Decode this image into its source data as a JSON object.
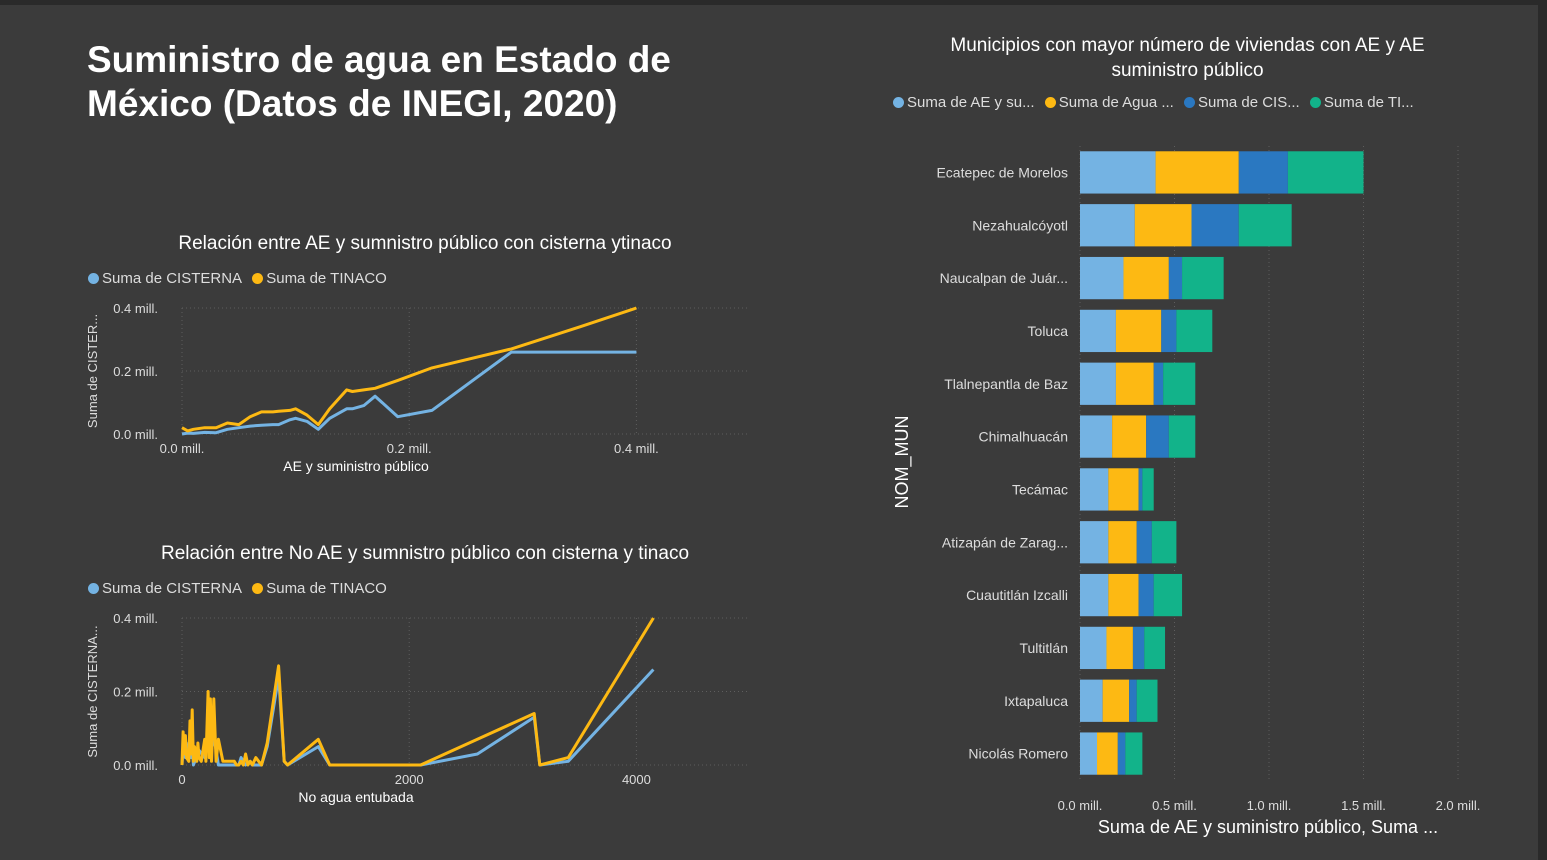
{
  "page": {
    "title": "Suministro de agua en Estado de México (Datos de INEGI, 2020)"
  },
  "colors": {
    "cisterna_line": "#74b3e3",
    "tinaco_line": "#fdb913",
    "ae": "#74b3e3",
    "agua": "#fdb913",
    "cis": "#2a78c1",
    "ti": "#12b38a"
  },
  "chart_data": [
    {
      "id": "ae",
      "type": "line",
      "title": "Relación entre AE y sumnistro público con cisterna ytinaco",
      "xlabel": "AE y suministro público",
      "ylabel": "Suma de CISTER...",
      "xlim": [
        0,
        0.5
      ],
      "ylim": [
        0,
        0.4
      ],
      "xticks": [
        {
          "v": 0,
          "label": "0.0 mill."
        },
        {
          "v": 0.2,
          "label": "0.2 mill."
        },
        {
          "v": 0.4,
          "label": "0.4 mill."
        }
      ],
      "yticks": [
        {
          "v": 0,
          "label": "0.0 mill."
        },
        {
          "v": 0.2,
          "label": "0.2 mill."
        },
        {
          "v": 0.4,
          "label": "0.4 mill."
        }
      ],
      "grid": true,
      "legend_position": "top-left",
      "series": [
        {
          "name": "Suma de CISTERNA",
          "color": "#74b3e3",
          "x": [
            0.0,
            0.005,
            0.01,
            0.02,
            0.03,
            0.04,
            0.05,
            0.06,
            0.07,
            0.08,
            0.085,
            0.095,
            0.1,
            0.11,
            0.12,
            0.13,
            0.145,
            0.15,
            0.16,
            0.17,
            0.19,
            0.22,
            0.29,
            0.35,
            0.4
          ],
          "y": [
            0.0,
            0.003,
            0.002,
            0.005,
            0.004,
            0.015,
            0.02,
            0.025,
            0.028,
            0.03,
            0.03,
            0.045,
            0.05,
            0.04,
            0.015,
            0.05,
            0.08,
            0.08,
            0.09,
            0.12,
            0.055,
            0.075,
            0.26,
            0.26,
            0.26
          ]
        },
        {
          "name": "Suma de TINACO",
          "color": "#fdb913",
          "x": [
            0.0,
            0.005,
            0.01,
            0.02,
            0.03,
            0.04,
            0.05,
            0.06,
            0.07,
            0.08,
            0.085,
            0.095,
            0.1,
            0.11,
            0.12,
            0.13,
            0.145,
            0.15,
            0.16,
            0.17,
            0.19,
            0.22,
            0.29,
            0.35,
            0.4
          ],
          "y": [
            0.02,
            0.01,
            0.015,
            0.02,
            0.02,
            0.035,
            0.03,
            0.055,
            0.07,
            0.07,
            0.072,
            0.075,
            0.08,
            0.06,
            0.03,
            0.08,
            0.14,
            0.135,
            0.14,
            0.145,
            0.17,
            0.21,
            0.27,
            0.34,
            0.4
          ]
        }
      ]
    },
    {
      "id": "noae",
      "type": "line",
      "title": "Relación entre No AE y sumnistro público con cisterna y tinaco",
      "xlabel": "No agua entubada",
      "ylabel": "Suma de CISTERNA...",
      "xlim": [
        0,
        5000
      ],
      "ylim": [
        0,
        0.4
      ],
      "xticks": [
        {
          "v": 0,
          "label": "0"
        },
        {
          "v": 2000,
          "label": "2000"
        },
        {
          "v": 4000,
          "label": "4000"
        }
      ],
      "yticks": [
        {
          "v": 0,
          "label": "0.0 mill."
        },
        {
          "v": 0.2,
          "label": "0.2 mill."
        },
        {
          "v": 0.4,
          "label": "0.4 mill."
        }
      ],
      "grid": true,
      "legend_position": "top-left",
      "series": [
        {
          "name": "Suma de CISTERNA",
          "color": "#74b3e3",
          "x": [
            0,
            10,
            30,
            60,
            80,
            90,
            100,
            150,
            200,
            230,
            250,
            280,
            320,
            380,
            450,
            500,
            520,
            560,
            600,
            620,
            700,
            750,
            850,
            900,
            930,
            1200,
            1300,
            1600,
            2100,
            2600,
            3100,
            3150,
            3400,
            4150
          ],
          "y": [
            0,
            0.05,
            0.02,
            0.06,
            0.02,
            0.08,
            0.0,
            0.04,
            0.02,
            0.1,
            0.02,
            0.08,
            0.0,
            0.0,
            0.0,
            0.0,
            0.02,
            0.0,
            0.01,
            0.0,
            0.0,
            0.05,
            0.24,
            0.01,
            0.0,
            0.05,
            0.0,
            0.0,
            0.0,
            0.03,
            0.13,
            0.0,
            0.01,
            0.26
          ]
        },
        {
          "name": "Suma de TINACO",
          "color": "#fdb913",
          "x": [
            0,
            10,
            20,
            30,
            40,
            60,
            70,
            80,
            90,
            100,
            110,
            130,
            140,
            150,
            170,
            200,
            210,
            230,
            240,
            250,
            260,
            280,
            300,
            320,
            360,
            420,
            460,
            480,
            500,
            520,
            540,
            560,
            580,
            600,
            620,
            650,
            700,
            750,
            850,
            900,
            930,
            1200,
            1300,
            1600,
            2100,
            2600,
            3100,
            3150,
            3400,
            4150
          ],
          "y": [
            0,
            0.09,
            0.03,
            0.08,
            0.02,
            0.01,
            0.12,
            0.03,
            0.15,
            0.01,
            0.05,
            0.01,
            0.06,
            0.02,
            0.01,
            0.07,
            0.01,
            0.2,
            0.02,
            0.18,
            0.01,
            0.18,
            0.01,
            0.07,
            0.01,
            0.01,
            0.01,
            0.0,
            0.0,
            0.01,
            0.0,
            0.03,
            0.0,
            0.01,
            0.0,
            0.02,
            0.0,
            0.06,
            0.27,
            0.01,
            0.0,
            0.07,
            0.0,
            0.0,
            0.0,
            0.07,
            0.14,
            0.0,
            0.02,
            0.4
          ]
        }
      ]
    },
    {
      "id": "bars",
      "type": "bar",
      "orientation": "horizontal",
      "stacked": true,
      "title": "Municipios con mayor número de viviendas con AE y AE suministro público",
      "xlabel": "Suma de AE y suministro público, Suma ...",
      "ylabel": "NOM_MUN",
      "xlim": [
        0,
        2.0
      ],
      "xticks": [
        {
          "v": 0,
          "label": "0.0 mill."
        },
        {
          "v": 0.5,
          "label": "0.5 mill."
        },
        {
          "v": 1.0,
          "label": "1.0 mill."
        },
        {
          "v": 1.5,
          "label": "1.5 mill."
        },
        {
          "v": 2.0,
          "label": "2.0 mill."
        }
      ],
      "grid": true,
      "legend_position": "top",
      "categories": [
        "Ecatepec de Morelos",
        "Nezahualcóyotl",
        "Naucalpan de Juár...",
        "Toluca",
        "Tlalnepantla de Baz",
        "Chimalhuacán",
        "Tecámac",
        "Atizapán de Zarag...",
        "Cuautitlán Izcalli",
        "Tultitlán",
        "Ixtapaluca",
        "Nicolás Romero"
      ],
      "series": [
        {
          "name": "Suma de AE y su...",
          "color": "#74b3e3",
          "values": [
            0.4,
            0.29,
            0.23,
            0.19,
            0.19,
            0.17,
            0.15,
            0.15,
            0.15,
            0.14,
            0.12,
            0.09
          ]
        },
        {
          "name": "Suma de Agua ...",
          "color": "#fdb913",
          "values": [
            0.44,
            0.3,
            0.24,
            0.24,
            0.2,
            0.18,
            0.16,
            0.15,
            0.16,
            0.14,
            0.14,
            0.11
          ]
        },
        {
          "name": "Suma de CIS...",
          "color": "#2a78c1",
          "values": [
            0.26,
            0.25,
            0.07,
            0.08,
            0.05,
            0.12,
            0.02,
            0.08,
            0.08,
            0.06,
            0.04,
            0.04
          ]
        },
        {
          "name": "Suma de TI...",
          "color": "#12b38a",
          "values": [
            0.4,
            0.28,
            0.22,
            0.19,
            0.17,
            0.14,
            0.06,
            0.13,
            0.15,
            0.11,
            0.11,
            0.09
          ]
        }
      ]
    }
  ]
}
